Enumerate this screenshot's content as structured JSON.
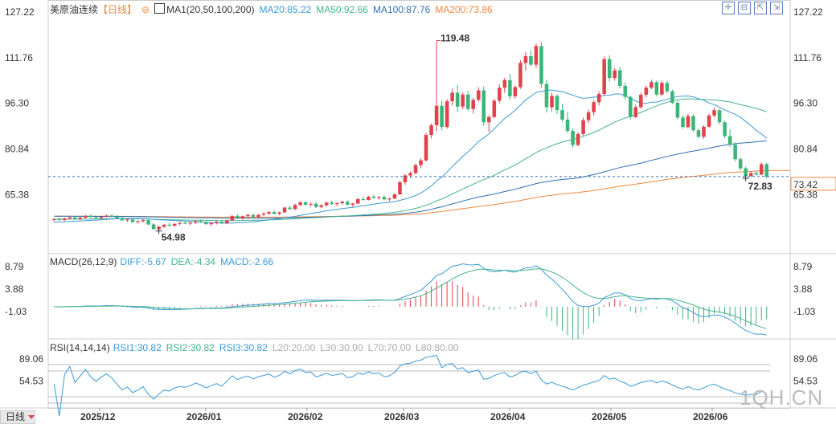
{
  "header": {
    "instrument": "美原油连续",
    "period": "【日线】",
    "ma_label": "MA1(20,50,100,200)",
    "ma20": "MA20:85.22",
    "ma50": "MA50:92.66",
    "ma100": "MA100:87.76",
    "ma200": "MA200:73.86"
  },
  "macd_header": {
    "label": "MACD(26,12,9)",
    "diff": "DIFF:-5.67",
    "dea": "DEA:-4.34",
    "macd": "MACD:-2.66"
  },
  "rsi_header": {
    "label": "RSI(14,14,14)",
    "rsi1": "RSI1:30.82",
    "rsi2": "RSI2:30.82",
    "rsi3": "RSI3:30.82",
    "l20": "L20:20.00",
    "l30": "L30:30.00",
    "l70": "L70:70.00",
    "l80": "L80:80.00"
  },
  "period_button": "日线",
  "watermark": "1QH.CN",
  "toolbar_icons": [
    "expand-icon",
    "collapse-icon",
    "fullscreen-icon",
    "restore-icon"
  ],
  "colors": {
    "up": "#e0434b",
    "down": "#3bb57a",
    "ma20": "#3a9ad9",
    "ma50": "#44b38c",
    "ma100": "#2f6fb5",
    "ma200": "#f0883e",
    "diff": "#3a9ad9",
    "dea": "#44b38c",
    "rsi": "#3a9ad9"
  },
  "chart_data": {
    "type": "candlestick",
    "x_labels": [
      "2025/12",
      "2026/01",
      "2026/02",
      "2026/03",
      "2026/04",
      "2026/05",
      "2026/06"
    ],
    "price_ticks": [
      "127.22",
      "111.76",
      "96.30",
      "80.84",
      "65.38"
    ],
    "macd_ticks": [
      "8.79",
      "3.88",
      "-1.03"
    ],
    "rsi_ticks": [
      "89.06",
      "54.53"
    ],
    "price_range": [
      50,
      127.22
    ],
    "annotations": {
      "high": "119.48",
      "low": "54.98",
      "recent_low": "72.83",
      "last_price": "73.42"
    },
    "ohlc": [
      [
        58.8,
        59.4,
        58.2,
        59.0
      ],
      [
        59.0,
        59.6,
        58.5,
        58.7
      ],
      [
        58.7,
        59.5,
        58.3,
        59.2
      ],
      [
        59.2,
        60.0,
        58.9,
        59.6
      ],
      [
        59.6,
        60.1,
        58.8,
        59.1
      ],
      [
        59.1,
        59.8,
        58.6,
        59.5
      ],
      [
        59.5,
        60.4,
        59.2,
        60.1
      ],
      [
        60.1,
        60.6,
        59.4,
        59.7
      ],
      [
        59.7,
        60.2,
        59.0,
        59.4
      ],
      [
        59.4,
        59.9,
        58.9,
        59.8
      ],
      [
        59.8,
        60.5,
        59.5,
        60.2
      ],
      [
        60.2,
        60.7,
        59.6,
        59.9
      ],
      [
        59.9,
        60.3,
        59.1,
        59.3
      ],
      [
        59.3,
        59.8,
        58.4,
        58.6
      ],
      [
        58.6,
        59.2,
        58.0,
        58.9
      ],
      [
        58.9,
        59.3,
        57.8,
        58.0
      ],
      [
        58.0,
        58.6,
        57.5,
        58.3
      ],
      [
        58.3,
        58.9,
        57.9,
        58.7
      ],
      [
        58.7,
        58.9,
        57.0,
        57.2
      ],
      [
        57.2,
        57.6,
        55.4,
        55.6
      ],
      [
        55.6,
        56.8,
        54.98,
        56.4
      ],
      [
        56.4,
        57.4,
        56.1,
        57.1
      ],
      [
        57.1,
        57.8,
        56.5,
        56.8
      ],
      [
        56.8,
        57.6,
        56.4,
        57.4
      ],
      [
        57.4,
        58.1,
        56.9,
        57.7
      ],
      [
        57.7,
        58.4,
        57.3,
        57.5
      ],
      [
        57.5,
        58.0,
        57.0,
        57.8
      ],
      [
        57.8,
        58.6,
        57.4,
        58.3
      ],
      [
        58.3,
        58.9,
        57.7,
        57.9
      ],
      [
        57.9,
        58.2,
        57.1,
        57.3
      ],
      [
        57.3,
        57.9,
        56.6,
        57.7
      ],
      [
        57.7,
        58.4,
        57.2,
        58.1
      ],
      [
        58.1,
        58.6,
        57.4,
        57.6
      ],
      [
        57.6,
        58.8,
        57.3,
        58.6
      ],
      [
        58.6,
        60.3,
        58.4,
        60.1
      ],
      [
        60.1,
        60.6,
        59.0,
        59.3
      ],
      [
        59.3,
        60.2,
        58.8,
        60.0
      ],
      [
        60.0,
        60.9,
        59.6,
        60.4
      ],
      [
        60.4,
        61.0,
        59.5,
        59.8
      ],
      [
        59.8,
        60.7,
        59.4,
        60.5
      ],
      [
        60.5,
        61.3,
        60.1,
        60.9
      ],
      [
        60.9,
        61.7,
        60.4,
        61.4
      ],
      [
        61.4,
        62.0,
        60.6,
        60.8
      ],
      [
        60.8,
        61.6,
        60.3,
        61.3
      ],
      [
        61.3,
        63.2,
        61.0,
        62.9
      ],
      [
        62.9,
        63.6,
        62.1,
        62.4
      ],
      [
        62.4,
        64.2,
        62.0,
        63.8
      ],
      [
        63.8,
        65.1,
        63.4,
        64.7
      ],
      [
        64.7,
        65.2,
        63.5,
        63.9
      ],
      [
        63.9,
        64.6,
        63.1,
        64.2
      ],
      [
        64.2,
        64.9,
        62.8,
        63.1
      ],
      [
        63.1,
        64.0,
        62.7,
        63.7
      ],
      [
        63.7,
        65.0,
        63.3,
        64.6
      ],
      [
        64.6,
        65.3,
        63.9,
        64.1
      ],
      [
        64.1,
        64.8,
        63.4,
        64.4
      ],
      [
        64.4,
        65.2,
        63.9,
        64.9
      ],
      [
        64.9,
        65.4,
        63.6,
        63.9
      ],
      [
        63.9,
        64.5,
        63.2,
        64.3
      ],
      [
        64.3,
        66.2,
        64.0,
        65.8
      ],
      [
        65.8,
        66.5,
        65.2,
        65.5
      ],
      [
        65.5,
        66.9,
        65.3,
        66.6
      ],
      [
        66.6,
        67.2,
        65.9,
        66.2
      ],
      [
        66.2,
        66.8,
        65.6,
        66.5
      ],
      [
        66.5,
        67.0,
        65.4,
        65.7
      ],
      [
        65.7,
        66.3,
        65.1,
        66.0
      ],
      [
        66.0,
        67.8,
        65.8,
        67.4
      ],
      [
        67.4,
        71.9,
        67.1,
        71.5
      ],
      [
        71.5,
        74.2,
        70.6,
        73.8
      ],
      [
        73.8,
        75.1,
        72.9,
        74.6
      ],
      [
        74.6,
        77.8,
        74.2,
        77.3
      ],
      [
        77.3,
        79.6,
        76.4,
        78.9
      ],
      [
        78.9,
        88.2,
        78.6,
        87.5
      ],
      [
        87.5,
        91.4,
        86.3,
        90.8
      ],
      [
        90.8,
        119.48,
        88.9,
        97.4
      ],
      [
        97.4,
        99.2,
        89.1,
        90.2
      ],
      [
        90.2,
        99.6,
        89.6,
        98.9
      ],
      [
        98.9,
        103.2,
        97.5,
        101.8
      ],
      [
        101.8,
        104.5,
        95.4,
        97.1
      ],
      [
        97.1,
        101.9,
        96.2,
        101.2
      ],
      [
        101.2,
        102.4,
        95.6,
        96.3
      ],
      [
        96.3,
        100.1,
        94.8,
        99.4
      ],
      [
        99.4,
        103.7,
        98.8,
        102.6
      ],
      [
        102.6,
        103.9,
        90.6,
        91.8
      ],
      [
        91.8,
        94.2,
        88.5,
        93.6
      ],
      [
        93.6,
        99.8,
        93.1,
        99.1
      ],
      [
        99.1,
        104.6,
        98.2,
        103.5
      ],
      [
        103.5,
        106.9,
        101.8,
        106.1
      ],
      [
        106.1,
        108.2,
        99.4,
        100.6
      ],
      [
        100.6,
        104.3,
        99.8,
        103.7
      ],
      [
        103.7,
        112.8,
        103.1,
        111.9
      ],
      [
        111.9,
        115.6,
        109.3,
        114.2
      ],
      [
        114.2,
        116.1,
        110.8,
        111.3
      ],
      [
        111.3,
        118.4,
        110.2,
        117.6
      ],
      [
        117.6,
        119.0,
        103.4,
        104.8
      ],
      [
        104.8,
        106.2,
        95.1,
        96.9
      ],
      [
        96.9,
        101.8,
        95.4,
        100.7
      ],
      [
        100.7,
        101.3,
        94.6,
        95.9
      ],
      [
        95.9,
        98.1,
        91.8,
        92.7
      ],
      [
        92.7,
        95.3,
        88.1,
        88.9
      ],
      [
        88.9,
        89.7,
        83.2,
        84.1
      ],
      [
        84.1,
        88.4,
        83.6,
        87.8
      ],
      [
        87.8,
        93.4,
        87.2,
        92.5
      ],
      [
        92.5,
        96.1,
        91.4,
        95.2
      ],
      [
        95.2,
        99.4,
        94.1,
        98.6
      ],
      [
        98.6,
        102.3,
        97.4,
        101.4
      ],
      [
        101.4,
        114.1,
        100.8,
        113.2
      ],
      [
        113.2,
        114.5,
        105.6,
        106.8
      ],
      [
        106.8,
        110.1,
        105.9,
        109.4
      ],
      [
        109.4,
        110.6,
        103.2,
        104.1
      ],
      [
        104.1,
        105.3,
        99.6,
        100.4
      ],
      [
        100.4,
        100.9,
        92.8,
        93.6
      ],
      [
        93.6,
        97.8,
        93.2,
        96.9
      ],
      [
        96.9,
        101.8,
        96.4,
        101.1
      ],
      [
        101.1,
        104.3,
        100.2,
        103.5
      ],
      [
        103.5,
        106.2,
        103.0,
        105.4
      ],
      [
        105.4,
        106.0,
        100.6,
        101.2
      ],
      [
        101.2,
        105.8,
        100.8,
        105.1
      ],
      [
        105.1,
        105.8,
        101.6,
        102.3
      ],
      [
        102.3,
        102.9,
        97.9,
        98.4
      ],
      [
        98.4,
        99.1,
        92.8,
        93.4
      ],
      [
        93.4,
        94.2,
        89.6,
        90.2
      ],
      [
        90.2,
        94.6,
        89.8,
        93.9
      ],
      [
        93.9,
        94.5,
        88.6,
        89.1
      ],
      [
        89.1,
        89.7,
        86.4,
        86.9
      ],
      [
        86.9,
        90.8,
        86.2,
        90.3
      ],
      [
        90.3,
        94.7,
        89.9,
        94.1
      ],
      [
        94.1,
        96.8,
        93.4,
        95.9
      ],
      [
        95.9,
        96.4,
        91.1,
        91.8
      ],
      [
        91.8,
        92.4,
        86.4,
        87.1
      ],
      [
        87.1,
        89.3,
        83.4,
        84.2
      ],
      [
        84.2,
        85.0,
        78.6,
        79.3
      ],
      [
        79.3,
        79.9,
        75.6,
        76.2
      ],
      [
        76.2,
        76.8,
        72.83,
        73.6
      ],
      [
        73.6,
        75.1,
        73.2,
        74.6
      ],
      [
        74.6,
        75.4,
        73.8,
        74.1
      ],
      [
        74.1,
        78.2,
        73.9,
        77.6
      ],
      [
        77.6,
        78.1,
        72.9,
        73.42
      ]
    ]
  }
}
